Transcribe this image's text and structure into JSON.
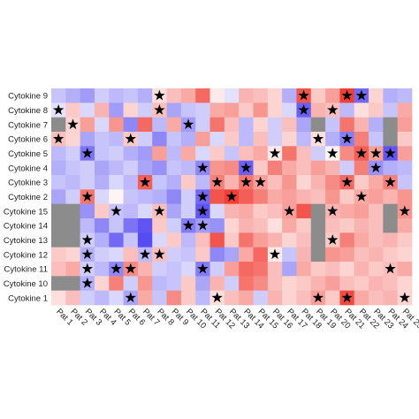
{
  "chart_data": {
    "type": "heatmap",
    "rows": [
      "Cytokine 9",
      "Cytokine 8",
      "Cytokine 7",
      "Cytokine 6",
      "Cytokine 5",
      "Cytokine 4",
      "Cytokine 3",
      "Cytokine 2",
      "Cytokine 15",
      "Cytokine 14",
      "Cytokine 13",
      "Cytokine 12",
      "Cytokine 11",
      "Cytokine 10",
      "Cytokine 1"
    ],
    "columns": [
      "Pat 1",
      "Pat 2",
      "Pat 3",
      "Pat 4",
      "Pat 5",
      "Pat 6",
      "Pat 7",
      "Pat 8",
      "Pat 9",
      "Pat 10",
      "Pat 11",
      "Pat 12",
      "Pat 13",
      "Pat 14",
      "Pat 15",
      "Pat 16",
      "Pat 17",
      "Pat 18",
      "Pat 19",
      "Pat 20",
      "Pat 21",
      "Pat 22",
      "Pat 23",
      "Pat 24",
      "Pat 25"
    ],
    "values": [
      [
        -0.6,
        -0.8,
        -1.0,
        -0.5,
        -0.7,
        -0.6,
        -0.8,
        0.3,
        0.6,
        0.8,
        1.4,
        0.2,
        -0.3,
        0.7,
        0.6,
        0.4,
        -0.8,
        1.6,
        0.5,
        0.9,
        1.8,
        -1.5,
        0.4,
        -0.8,
        -0.7
      ],
      [
        -0.3,
        0.5,
        -0.4,
        0.7,
        -1.0,
        0.4,
        -0.5,
        0.6,
        -0.9,
        -0.6,
        -0.5,
        0.8,
        0.9,
        0.5,
        1.0,
        0.4,
        -0.4,
        -1.6,
        0.7,
        0.6,
        -0.7,
        0.3,
        0.5,
        -0.6,
        0.8
      ],
      [
        null,
        0.4,
        0.9,
        -0.4,
        1.0,
        -1.2,
        1.4,
        -0.7,
        0.8,
        -1.0,
        -0.5,
        1.3,
        0.6,
        -0.7,
        0.4,
        -0.5,
        0.6,
        -0.9,
        null,
        -0.6,
        1.3,
        0.7,
        -0.8,
        null,
        0.9
      ],
      [
        0.6,
        0.4,
        -0.9,
        -0.6,
        -0.7,
        0.5,
        -0.5,
        -1.2,
        -0.6,
        -0.8,
        0.9,
        -0.4,
        0.5,
        -0.7,
        0.6,
        -0.5,
        0.4,
        -0.7,
        0.3,
        -0.8,
        -1.3,
        1.2,
        -0.6,
        null,
        0.5
      ],
      [
        -0.7,
        -0.5,
        -1.4,
        -0.6,
        -0.5,
        -0.8,
        -1.0,
        0.9,
        -0.7,
        0.8,
        -0.4,
        0.5,
        -0.6,
        0.6,
        0.8,
        0.2,
        1.3,
        0.6,
        -0.5,
        0.1,
        1.1,
        1.5,
        0.9,
        -1.7,
        0.9
      ],
      [
        -0.8,
        -0.6,
        -0.5,
        -0.9,
        -0.7,
        -0.5,
        -0.9,
        -1.1,
        -0.6,
        -0.7,
        -1.2,
        1.0,
        1.1,
        -1.6,
        0.5,
        1.2,
        0.8,
        0.6,
        0.9,
        0.7,
        -0.5,
        1.2,
        -1.1,
        -0.8,
        -0.7
      ],
      [
        -0.6,
        -0.7,
        -0.5,
        -0.8,
        -0.4,
        -0.7,
        1.5,
        -0.6,
        -0.8,
        0.5,
        -0.7,
        1.2,
        0.7,
        1.3,
        0.9,
        0.6,
        1.0,
        0.4,
        0.7,
        1.1,
        1.4,
        0.5,
        0.8,
        1.2,
        -0.6
      ],
      [
        -0.9,
        -0.5,
        1.3,
        -0.4,
        0.1,
        -0.6,
        -0.7,
        -0.8,
        -1.2,
        -0.5,
        -1.5,
        1.6,
        1.8,
        1.5,
        1.2,
        0.8,
        0.9,
        0.7,
        0.6,
        1.0,
        0.5,
        0.8,
        0.9,
        0.7,
        1.0
      ],
      [
        null,
        null,
        -1.1,
        0.5,
        -0.6,
        -0.7,
        -0.4,
        0.6,
        -0.9,
        -0.5,
        -1.7,
        -0.4,
        0.7,
        0.8,
        0.5,
        0.6,
        0.9,
        1.6,
        null,
        0.7,
        0.8,
        0.9,
        0.6,
        null,
        1.0
      ],
      [
        null,
        null,
        -0.7,
        -1.2,
        -0.6,
        -1.4,
        -1.7,
        0.5,
        -0.5,
        -1.3,
        -1.0,
        -1.1,
        0.4,
        0.7,
        0.6,
        0.3,
        0.8,
        0.5,
        null,
        0.6,
        0.5,
        0.7,
        0.6,
        null,
        0.8
      ],
      [
        null,
        null,
        -0.5,
        -0.8,
        -1.5,
        -0.6,
        -1.8,
        -0.4,
        0.5,
        -0.7,
        0.6,
        1.6,
        0.5,
        1.3,
        0.9,
        0.7,
        0.4,
        0.6,
        null,
        0.5,
        1.2,
        0.8,
        0.6,
        0.7,
        0.5
      ],
      [
        0.5,
        0.4,
        -0.8,
        -0.5,
        -0.4,
        0.6,
        -0.7,
        0.6,
        -0.5,
        -0.6,
        0.5,
        -1.2,
        -0.9,
        0.8,
        1.4,
        0.2,
        -0.6,
        0.7,
        null,
        1.0,
        0.9,
        0.6,
        0.7,
        0.5,
        0.4
      ],
      [
        0.6,
        0.8,
        -0.5,
        -0.7,
        -1.2,
        1.1,
        0.7,
        -0.5,
        -0.6,
        -0.4,
        -1.3,
        -0.5,
        0.9,
        1.4,
        1.3,
        0.6,
        -0.9,
        0.8,
        0.5,
        0.6,
        0.4,
        0.7,
        0.5,
        0.6,
        0.8
      ],
      [
        null,
        null,
        -0.8,
        0.4,
        1.2,
        -0.5,
        1.0,
        -0.7,
        -0.6,
        0.5,
        -0.9,
        0.7,
        -0.5,
        1.3,
        1.1,
        0.6,
        0.4,
        0.5,
        0.7,
        0.9,
        0.6,
        0.5,
        0.7,
        0.6,
        0.4
      ],
      [
        0.3,
        0.6,
        -0.5,
        -0.7,
        -0.4,
        -0.9,
        0.8,
        -0.6,
        1.1,
        0.5,
        -0.7,
        0.3,
        0.6,
        0.8,
        -0.5,
        0.7,
        0.4,
        0.6,
        0.9,
        0.5,
        1.7,
        0.8,
        0.6,
        0.7,
        0.4
      ]
    ],
    "stars": [
      [
        7,
        17,
        20,
        21
      ],
      [
        0,
        7,
        17,
        19
      ],
      [
        1,
        9
      ],
      [
        0,
        5,
        18,
        20
      ],
      [
        2,
        15,
        19,
        21,
        22,
        23
      ],
      [
        10,
        13,
        22
      ],
      [
        6,
        11,
        13,
        14,
        20,
        23
      ],
      [
        2,
        10,
        12,
        21
      ],
      [
        4,
        7,
        10,
        16,
        19,
        24
      ],
      [
        9,
        10
      ],
      [
        2,
        19
      ],
      [
        2,
        6,
        7,
        15
      ],
      [
        2,
        4,
        5,
        10,
        23
      ],
      [
        2
      ],
      [
        5,
        11,
        18,
        20,
        24
      ]
    ],
    "color_low": "#4437f0",
    "color_mid": "#ffffff",
    "color_high": "#ef2a1f",
    "color_na": "#8c8c8c",
    "limits": [
      -2,
      2
    ]
  }
}
